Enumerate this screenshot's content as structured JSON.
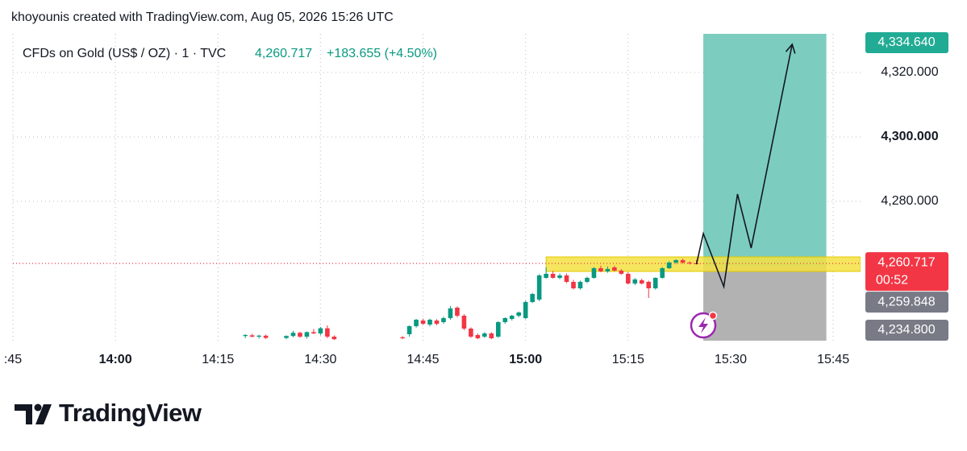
{
  "header": {
    "credit": "khoyounis created with TradingView.com, Aug 05, 2026 15:26 UTC"
  },
  "chart_data": {
    "type": "candlestick",
    "symbol": "CFDs on Gold (US$ / OZ) · 1 · TVC",
    "change": "+183.655 (+4.50%)",
    "up_color": "#089981",
    "down_color": "#f23645",
    "xlim": [
      "13:45",
      "15:49"
    ],
    "xticks": [
      {
        "value": "13:45",
        "label": ":45"
      },
      "14:00",
      "14:15",
      "14:30",
      "14:45",
      "15:00",
      "15:15",
      "15:30",
      "15:45"
    ],
    "ylim": [
      4236.75,
      4332
    ],
    "yticks": [
      {
        "value": 4280,
        "label": "4,280.000"
      },
      {
        "value": 4300,
        "label": "4,300.000"
      },
      {
        "value": 4320,
        "label": "4,320.000"
      }
    ],
    "grid": true,
    "x": [
      "14:19",
      "14:20",
      "14:21",
      "14:22",
      "14:25",
      "14:26",
      "14:27",
      "14:28",
      "14:29",
      "14:30",
      "14:31",
      "14:32",
      "14:42",
      "14:43",
      "14:44",
      "14:45",
      "14:46",
      "14:47",
      "14:48",
      "14:49",
      "14:50",
      "14:51",
      "14:52",
      "14:53",
      "14:54",
      "14:55",
      "14:56",
      "14:57",
      "14:58",
      "14:59",
      "15:00",
      "15:01",
      "15:02",
      "15:03",
      "15:04",
      "15:05",
      "15:06",
      "15:07",
      "15:08",
      "15:09",
      "15:10",
      "15:11",
      "15:12",
      "15:13",
      "15:14",
      "15:15",
      "15:16",
      "15:17",
      "15:18",
      "15:19",
      "15:20",
      "15:21",
      "15:22",
      "15:23",
      "15:24",
      "15:25"
    ],
    "open": [
      4238.2,
      4238.4,
      4238.0,
      4238.3,
      4237.6,
      4238.2,
      4239.2,
      4238.0,
      4239.4,
      4239.0,
      4240.6,
      4238.0,
      4237.8,
      4238.75,
      4241.25,
      4243.0,
      4241.75,
      4243.0,
      4242.5,
      4243.75,
      4247.0,
      4244.5,
      4240.5,
      4238.5,
      4238.0,
      4239.0,
      4238.0,
      4242.5,
      4243.5,
      4244.5,
      4243.75,
      4248.75,
      4249.5,
      4256.25,
      4257.5,
      4256.25,
      4257.0,
      4255.0,
      4253.0,
      4255.0,
      4256.25,
      4259.25,
      4258.25,
      4259.5,
      4258.5,
      4257.5,
      4254.5,
      4255.5,
      4255.0,
      4253.0,
      4256.25,
      4259.25,
      4261.0,
      4261.75,
      4261.0,
      4260.75
    ],
    "high": [
      4238.8,
      4238.9,
      4238.6,
      4238.6,
      4238.4,
      4239.8,
      4239.5,
      4239.6,
      4240.4,
      4241.0,
      4241.5,
      4238.4,
      4238.2,
      4241.5,
      4243.5,
      4243.6,
      4243.6,
      4243.4,
      4244.2,
      4247.5,
      4247.4,
      4245.0,
      4240.9,
      4239.0,
      4239.4,
      4239.4,
      4242.8,
      4244.0,
      4244.8,
      4245.8,
      4249.2,
      4251.6,
      4257.4,
      4259.5,
      4258.4,
      4257.6,
      4257.6,
      4255.6,
      4255.4,
      4256.6,
      4259.6,
      4260.0,
      4259.8,
      4260.0,
      4259.0,
      4258.0,
      4256.2,
      4256.0,
      4255.4,
      4256.4,
      4259.6,
      4261.4,
      4262.0,
      4262.2,
      4261.4,
      4261.8
    ],
    "low": [
      4237.5,
      4237.8,
      4237.4,
      4237.3,
      4237.2,
      4237.8,
      4237.6,
      4237.4,
      4238.8,
      4238.4,
      4237.5,
      4237.0,
      4237.2,
      4238.0,
      4240.8,
      4241.6,
      4241.2,
      4241.5,
      4242.0,
      4243.2,
      4244.0,
      4240.0,
      4237.6,
      4237.2,
      4237.6,
      4237.2,
      4237.6,
      4242.0,
      4243.0,
      4244.0,
      4243.4,
      4248.4,
      4249.0,
      4256.0,
      4256.0,
      4255.8,
      4254.6,
      4252.6,
      4252.6,
      4254.6,
      4256.0,
      4258.0,
      4257.8,
      4258.2,
      4257.2,
      4254.2,
      4254.0,
      4254.2,
      4250.0,
      4252.6,
      4256.0,
      4259.0,
      4260.6,
      4260.6,
      4260.4,
      4260.4
    ],
    "close": [
      4238.5,
      4238.0,
      4238.3,
      4237.6,
      4238.2,
      4239.2,
      4238.0,
      4239.4,
      4239.0,
      4240.6,
      4238.0,
      4237.2,
      4237.5,
      4241.25,
      4243.25,
      4242.0,
      4243.25,
      4242.0,
      4243.75,
      4246.75,
      4244.5,
      4240.5,
      4238.0,
      4237.5,
      4239.0,
      4237.5,
      4242.5,
      4243.75,
      4244.5,
      4245.5,
      4248.75,
      4251.25,
      4257.0,
      4257.5,
      4256.25,
      4257.0,
      4255.0,
      4253.0,
      4255.0,
      4256.25,
      4259.25,
      4258.25,
      4259.0,
      4258.5,
      4257.5,
      4254.5,
      4255.75,
      4254.5,
      4253.0,
      4256.25,
      4259.25,
      4261.0,
      4261.75,
      4261.0,
      4260.75,
      4260.717
    ],
    "last": {
      "value": 4260.717,
      "label": "4,260.717",
      "countdown": "00:52",
      "color": "#f23645"
    },
    "zone": {
      "start": "15:03",
      "end": "15:49",
      "low": 4258.25,
      "high": 4262.75,
      "color": "#f5e142"
    },
    "position": {
      "start": "15:26",
      "end": "15:44",
      "target": {
        "value": 4334.64,
        "label": "4,334.640"
      },
      "entry": {
        "value": 4259.848,
        "label": "4,259.848"
      },
      "stop": {
        "value": 4234.8,
        "label": "4,234.800"
      },
      "profit_color": "#7ccdbf",
      "loss_color": "#b2b2b2"
    },
    "projection": {
      "x": [
        "15:25",
        "15:26",
        "15:29",
        "15:31",
        "15:33",
        "15:39"
      ],
      "y": [
        4260.5,
        4270,
        4253.5,
        4282.25,
        4265.5,
        4328.75
      ]
    }
  },
  "footer": {
    "brand": "TradingView"
  }
}
